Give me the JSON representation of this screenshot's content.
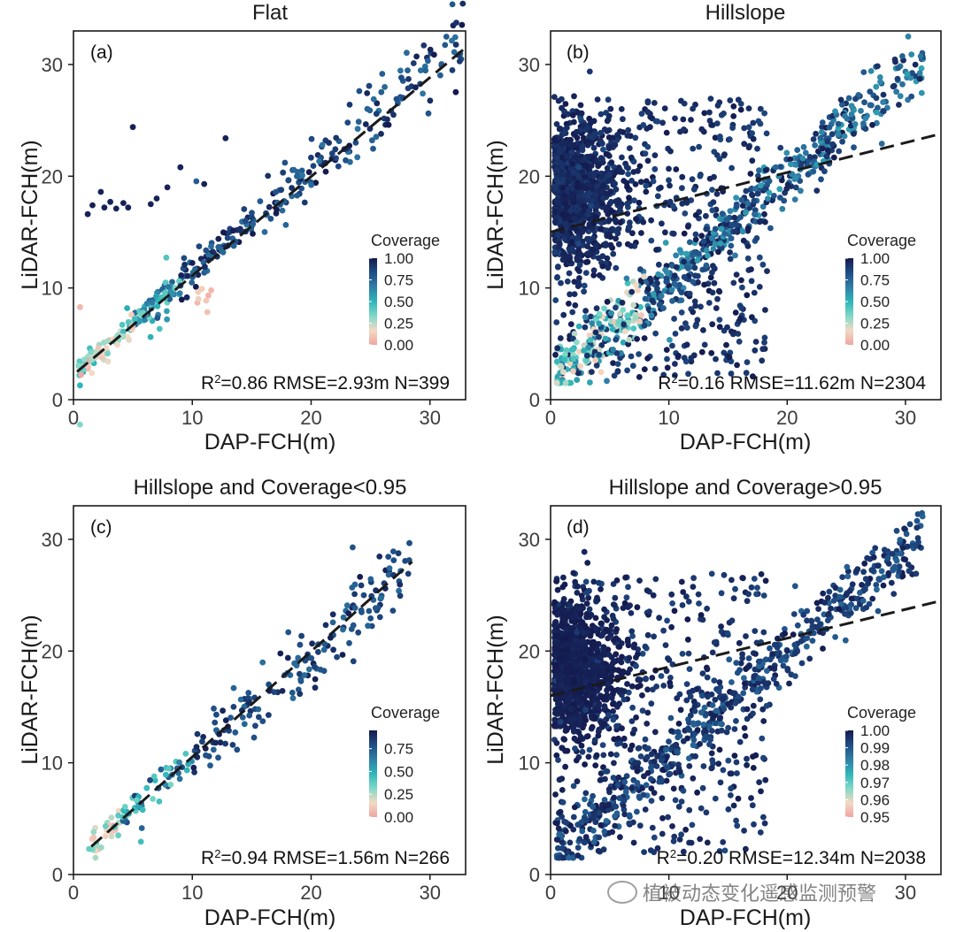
{
  "colors": {
    "colormap": [
      "#f0a6a0",
      "#f2d9c4",
      "#7fd9c7",
      "#2fb5b8",
      "#2f7fa6",
      "#1f4e86",
      "#141a4e"
    ],
    "frame": "#1a1a1a",
    "fit_line": "#1a1a1a"
  },
  "chart_data": [
    {
      "type": "scatter",
      "panel_label": "(a)",
      "title": "Flat",
      "xlabel": "DAP-FCH(m)",
      "ylabel": "LiDAR-FCH(m)",
      "xlim": [
        0,
        33
      ],
      "ylim": [
        0,
        33
      ],
      "xticks": [
        0,
        10,
        20,
        30
      ],
      "yticks": [
        0,
        10,
        20,
        30
      ],
      "fit_line": {
        "x": [
          0.3,
          33
        ],
        "y": [
          2.5,
          31.5
        ]
      },
      "stats": {
        "r2_prefix": "R",
        "r2_sup": "2",
        "r2_rest": "=0.86 RMSE=2.93m N=399"
      },
      "colorbar": {
        "title": "Coverage",
        "min": 0,
        "max": 1,
        "ticks": [
          "1.00",
          "0.75",
          "0.50",
          "0.25",
          "0.00"
        ]
      },
      "scatter": {
        "n": 399,
        "mode": "flat",
        "description_of_distribution": "points along 1:1 line with outlier cluster near x 1-5, y 16-19"
      }
    },
    {
      "type": "scatter",
      "panel_label": "(b)",
      "title": "Hillslope",
      "xlabel": "DAP-FCH(m)",
      "ylabel": "LiDAR-FCH(m)",
      "xlim": [
        0,
        33
      ],
      "ylim": [
        0,
        33
      ],
      "xticks": [
        0,
        10,
        20,
        30
      ],
      "yticks": [
        0,
        10,
        20,
        30
      ],
      "fit_line": {
        "x": [
          0,
          33
        ],
        "y": [
          15,
          23.8
        ]
      },
      "stats": {
        "r2_prefix": "R",
        "r2_sup": "2",
        "r2_rest": "=0.16 RMSE=11.62m N=2304"
      },
      "colorbar": {
        "title": "Coverage",
        "min": 0,
        "max": 1,
        "ticks": [
          "1.00",
          "0.75",
          "0.50",
          "0.25",
          "0.00"
        ]
      },
      "scatter": {
        "n": 2304,
        "mode": "hill"
      }
    },
    {
      "type": "scatter",
      "panel_label": "(c)",
      "title": "Hillslope and Coverage<0.95",
      "xlabel": "DAP-FCH(m)",
      "ylabel": "LiDAR-FCH(m)",
      "xlim": [
        0,
        33
      ],
      "ylim": [
        0,
        33
      ],
      "xticks": [
        0,
        10,
        20,
        30
      ],
      "yticks": [
        0,
        10,
        20,
        30
      ],
      "fit_line": {
        "x": [
          1.5,
          28.5
        ],
        "y": [
          2.5,
          28
        ]
      },
      "stats": {
        "r2_prefix": "R",
        "r2_sup": "2",
        "r2_rest": "=0.94 RMSE=1.56m N=266"
      },
      "colorbar": {
        "title": "Coverage",
        "min": 0,
        "max": 0.95,
        "ticks": [
          "0.75",
          "0.50",
          "0.25",
          "0.00"
        ]
      },
      "scatter": {
        "n": 266,
        "mode": "lowcov"
      }
    },
    {
      "type": "scatter",
      "panel_label": "(d)",
      "title": "Hillslope and Coverage>0.95",
      "xlabel": "DAP-FCH(m)",
      "ylabel": "LiDAR-FCH(m)",
      "xlim": [
        0,
        33
      ],
      "ylim": [
        0,
        33
      ],
      "xticks": [
        0,
        10,
        20,
        30
      ],
      "yticks": [
        0,
        10,
        20,
        30
      ],
      "fit_line": {
        "x": [
          0,
          33
        ],
        "y": [
          16,
          24.5
        ]
      },
      "stats": {
        "r2_prefix": "R",
        "r2_sup": "2",
        "r2_rest": "=0.20 RMSE=12.34m N=2038"
      },
      "colorbar": {
        "title": "Coverage",
        "min": 0.95,
        "max": 1,
        "ticks": [
          "1.00",
          "0.99",
          "0.98",
          "0.97",
          "0.96",
          "0.95"
        ]
      },
      "scatter": {
        "n": 2038,
        "mode": "highcov"
      }
    }
  ],
  "watermark": {
    "text": "植被动态变化遥感监测预警"
  }
}
